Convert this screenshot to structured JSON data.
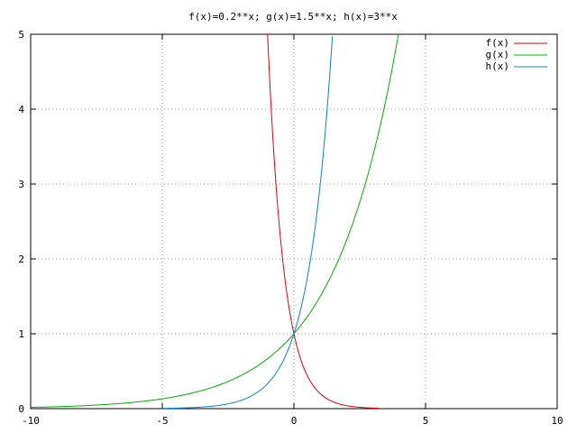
{
  "chart_data": {
    "type": "line",
    "title": "f(x)=0.2**x; g(x)=1.5**x; h(x)=3**x",
    "xlabel": "",
    "ylabel": "",
    "xlim": [
      -10,
      10
    ],
    "ylim": [
      0,
      5
    ],
    "x_ticks": [
      -10,
      -5,
      0,
      5,
      10
    ],
    "y_ticks": [
      0,
      1,
      2,
      3,
      4,
      5
    ],
    "x_tick_labels": [
      "-10",
      "-5",
      "0",
      "5",
      "10"
    ],
    "y_tick_labels": [
      "0",
      "1",
      "2",
      "3",
      "4",
      "5"
    ],
    "grid": true,
    "grid_style": "dotted",
    "legend_position": "top-right",
    "series": [
      {
        "name": "f(x)",
        "base": 0.2,
        "color": "#e8000b",
        "x": [
          -1,
          -0.8,
          -0.6,
          -0.4,
          -0.2,
          0,
          0.25,
          0.5,
          0.75,
          1,
          1.5,
          2,
          2.5,
          3,
          3.2
        ],
        "y": [
          5,
          3.62,
          2.63,
          1.9,
          1.38,
          1,
          0.67,
          0.45,
          0.3,
          0.2,
          0.09,
          0.04,
          0.02,
          0.01,
          0.01
        ]
      },
      {
        "name": "g(x)",
        "base": 1.5,
        "color": "#00b000",
        "x": [
          -10,
          -8,
          -6,
          -4,
          -3,
          -2,
          -1,
          0,
          1,
          2,
          3,
          3.5,
          3.97
        ],
        "y": [
          0.02,
          0.04,
          0.09,
          0.2,
          0.3,
          0.44,
          0.67,
          1,
          1.5,
          2.25,
          3.38,
          4.13,
          5
        ]
      },
      {
        "name": "h(x)",
        "base": 3,
        "color": "#0a84d8",
        "x": [
          -5,
          -4,
          -3,
          -2,
          -1.5,
          -1,
          -0.5,
          0,
          0.25,
          0.5,
          0.75,
          1,
          1.25,
          1.46
        ],
        "y": [
          0,
          0.01,
          0.04,
          0.11,
          0.19,
          0.33,
          0.58,
          1,
          1.32,
          1.73,
          2.28,
          3,
          3.95,
          5
        ]
      }
    ]
  }
}
